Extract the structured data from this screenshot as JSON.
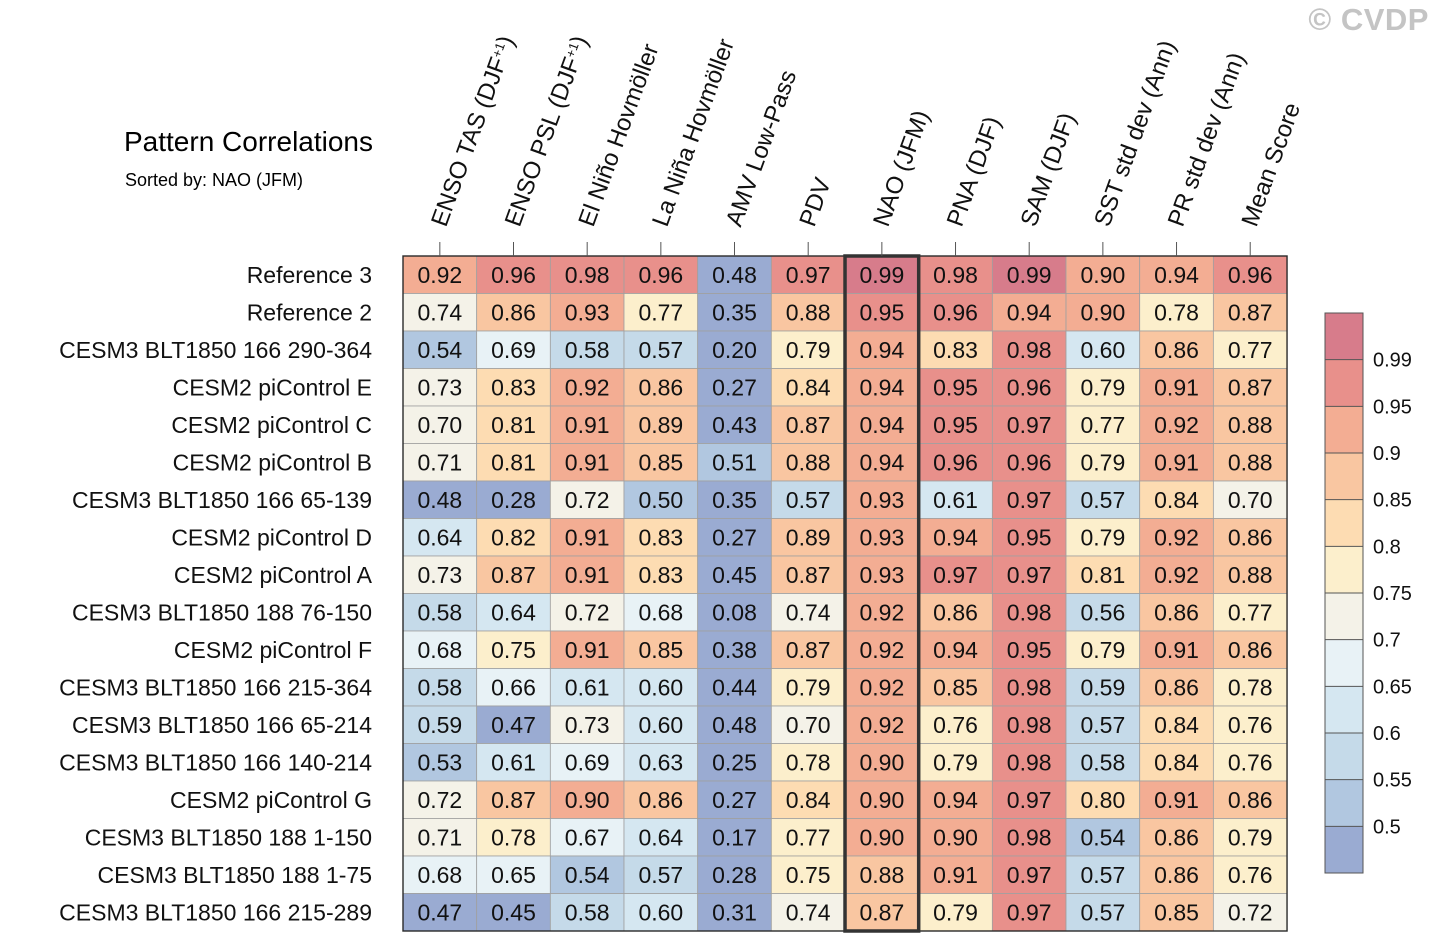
{
  "watermark": "© CVDP",
  "chart_data": {
    "type": "heatmap",
    "title": "Pattern Correlations",
    "subtitle": "Sorted by: NAO (JFM)",
    "highlight_column": 6,
    "columns": [
      {
        "label": "ENSO TAS (DJF",
        "sup": "+1",
        "tail": ")"
      },
      {
        "label": "ENSO PSL (DJF",
        "sup": "+1",
        "tail": ")"
      },
      {
        "label": "El Niño Hovmöller"
      },
      {
        "label": "La Niña Hovmöller"
      },
      {
        "label": "AMV Low-Pass"
      },
      {
        "label": "PDV"
      },
      {
        "label": "NAO (JFM)"
      },
      {
        "label": "PNA (DJF)"
      },
      {
        "label": "SAM (DJF)"
      },
      {
        "label": "SST std dev (Ann)"
      },
      {
        "label": "PR std dev (Ann)"
      },
      {
        "label": "Mean Score"
      }
    ],
    "rows": [
      {
        "name": "Reference 3",
        "values": [
          "0.92",
          "0.96",
          "0.98",
          "0.96",
          "0.48",
          "0.97",
          "0.99",
          "0.98",
          "0.99",
          "0.90",
          "0.94",
          "0.96"
        ]
      },
      {
        "name": "Reference 2",
        "values": [
          "0.74",
          "0.86",
          "0.93",
          "0.77",
          "0.35",
          "0.88",
          "0.95",
          "0.96",
          "0.94",
          "0.90",
          "0.78",
          "0.87"
        ]
      },
      {
        "name": "CESM3 BLT1850 166 290-364",
        "values": [
          "0.54",
          "0.69",
          "0.58",
          "0.57",
          "0.20",
          "0.79",
          "0.94",
          "0.83",
          "0.98",
          "0.60",
          "0.86",
          "0.77"
        ]
      },
      {
        "name": "CESM2 piControl E",
        "values": [
          "0.73",
          "0.83",
          "0.92",
          "0.86",
          "0.27",
          "0.84",
          "0.94",
          "0.95",
          "0.96",
          "0.79",
          "0.91",
          "0.87"
        ]
      },
      {
        "name": "CESM2 piControl C",
        "values": [
          "0.70",
          "0.81",
          "0.91",
          "0.89",
          "0.43",
          "0.87",
          "0.94",
          "0.95",
          "0.97",
          "0.77",
          "0.92",
          "0.88"
        ]
      },
      {
        "name": "CESM2 piControl B",
        "values": [
          "0.71",
          "0.81",
          "0.91",
          "0.85",
          "0.51",
          "0.88",
          "0.94",
          "0.96",
          "0.96",
          "0.79",
          "0.91",
          "0.88"
        ]
      },
      {
        "name": "CESM3 BLT1850 166 65-139",
        "values": [
          "0.48",
          "0.28",
          "0.72",
          "0.50",
          "0.35",
          "0.57",
          "0.93",
          "0.61",
          "0.97",
          "0.57",
          "0.84",
          "0.70"
        ]
      },
      {
        "name": "CESM2 piControl D",
        "values": [
          "0.64",
          "0.82",
          "0.91",
          "0.83",
          "0.27",
          "0.89",
          "0.93",
          "0.94",
          "0.95",
          "0.79",
          "0.92",
          "0.86"
        ]
      },
      {
        "name": "CESM2 piControl A",
        "values": [
          "0.73",
          "0.87",
          "0.91",
          "0.83",
          "0.45",
          "0.87",
          "0.93",
          "0.97",
          "0.97",
          "0.81",
          "0.92",
          "0.88"
        ]
      },
      {
        "name": "CESM3 BLT1850 188 76-150",
        "values": [
          "0.58",
          "0.64",
          "0.72",
          "0.68",
          "0.08",
          "0.74",
          "0.92",
          "0.86",
          "0.98",
          "0.56",
          "0.86",
          "0.77"
        ]
      },
      {
        "name": "CESM2 piControl F",
        "values": [
          "0.68",
          "0.75",
          "0.91",
          "0.85",
          "0.38",
          "0.87",
          "0.92",
          "0.94",
          "0.95",
          "0.79",
          "0.91",
          "0.86"
        ]
      },
      {
        "name": "CESM3 BLT1850 166 215-364",
        "values": [
          "0.58",
          "0.66",
          "0.61",
          "0.60",
          "0.44",
          "0.79",
          "0.92",
          "0.85",
          "0.98",
          "0.59",
          "0.86",
          "0.78"
        ]
      },
      {
        "name": "CESM3 BLT1850 166 65-214",
        "values": [
          "0.59",
          "0.47",
          "0.73",
          "0.60",
          "0.48",
          "0.70",
          "0.92",
          "0.76",
          "0.98",
          "0.57",
          "0.84",
          "0.76"
        ]
      },
      {
        "name": "CESM3 BLT1850 166 140-214",
        "values": [
          "0.53",
          "0.61",
          "0.69",
          "0.63",
          "0.25",
          "0.78",
          "0.90",
          "0.79",
          "0.98",
          "0.58",
          "0.84",
          "0.76"
        ]
      },
      {
        "name": "CESM2 piControl G",
        "values": [
          "0.72",
          "0.87",
          "0.90",
          "0.86",
          "0.27",
          "0.84",
          "0.90",
          "0.94",
          "0.97",
          "0.80",
          "0.91",
          "0.86"
        ]
      },
      {
        "name": "CESM3 BLT1850 188 1-150",
        "values": [
          "0.71",
          "0.78",
          "0.67",
          "0.64",
          "0.17",
          "0.77",
          "0.90",
          "0.90",
          "0.98",
          "0.54",
          "0.86",
          "0.79"
        ]
      },
      {
        "name": "CESM3 BLT1850 188 1-75",
        "values": [
          "0.68",
          "0.65",
          "0.54",
          "0.57",
          "0.28",
          "0.75",
          "0.88",
          "0.91",
          "0.97",
          "0.57",
          "0.86",
          "0.76"
        ]
      },
      {
        "name": "CESM3 BLT1850 166 215-289",
        "values": [
          "0.47",
          "0.45",
          "0.58",
          "0.60",
          "0.31",
          "0.74",
          "0.87",
          "0.79",
          "0.97",
          "0.57",
          "0.85",
          "0.72"
        ]
      }
    ],
    "colorbar": {
      "levels": [
        0.5,
        0.55,
        0.6,
        0.65,
        0.7,
        0.75,
        0.8,
        0.85,
        0.9,
        0.95,
        0.99
      ],
      "labels": [
        "0.5",
        "0.55",
        "0.6",
        "0.65",
        "0.7",
        "0.75",
        "0.8",
        "0.85",
        "0.9",
        "0.95",
        "0.99"
      ],
      "colors": [
        "#9aabd2",
        "#b1c7e0",
        "#c5dae9",
        "#d5e7f1",
        "#e8f2f6",
        "#f4f2e8",
        "#fcefcc",
        "#fddcb2",
        "#f9c6a1",
        "#f3ad93",
        "#e8908b",
        "#d77c8b"
      ]
    }
  }
}
